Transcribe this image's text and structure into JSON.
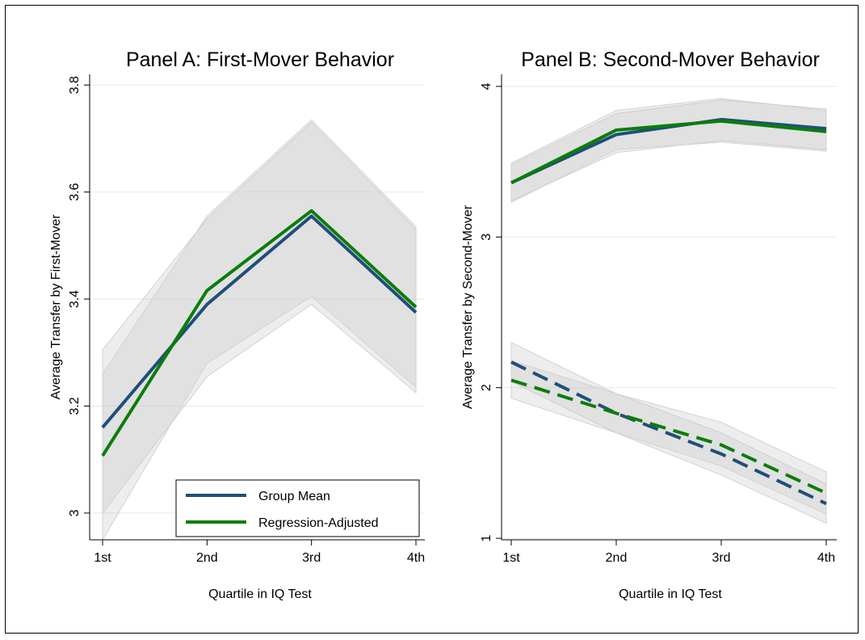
{
  "chart_data": [
    {
      "type": "line",
      "title": "Panel A: First-Mover Behavior",
      "xlabel": "Quartile in IQ Test",
      "ylabel": "Average Transfer by First-Mover",
      "categories": [
        "1st",
        "2nd",
        "3rd",
        "4th"
      ],
      "ylim": [
        2.95,
        3.82
      ],
      "yticks": [
        "3",
        "3.2",
        "3.4",
        "3.6",
        "3.8"
      ],
      "grid": true,
      "legend_position": "bottom-right",
      "series": [
        {
          "name": "Group Mean",
          "values": [
            3.16,
            3.39,
            3.555,
            3.375
          ],
          "color": "#1f4e79",
          "style": "solid",
          "ci_low": [
            3.0,
            3.255,
            3.39,
            3.225
          ],
          "ci_high": [
            3.305,
            3.55,
            3.73,
            3.53
          ]
        },
        {
          "name": "Regression-Adjusted",
          "values": [
            3.107,
            3.416,
            3.565,
            3.385
          ],
          "color": "#0a7d0a",
          "style": "solid",
          "ci_low": [
            2.95,
            3.28,
            3.405,
            3.235
          ],
          "ci_high": [
            3.26,
            3.555,
            3.735,
            3.535
          ]
        }
      ],
      "legend": [
        "Group Mean",
        "Regression-Adjusted"
      ]
    },
    {
      "type": "line",
      "title": "Panel B: Second-Mover Behavior",
      "xlabel": "Quartile in IQ Test",
      "ylabel": "Average Transfer by Second-Mover",
      "categories": [
        "1st",
        "2nd",
        "3rd",
        "4th"
      ],
      "ylim": [
        0.99,
        4.08
      ],
      "yticks": [
        "1",
        "2",
        "3",
        "4"
      ],
      "grid": true,
      "series": [
        {
          "values": [
            3.36,
            3.68,
            3.78,
            3.72
          ],
          "color": "#1f4e79",
          "style": "solid",
          "ci_low": [
            3.24,
            3.56,
            3.64,
            3.58
          ],
          "ci_high": [
            3.48,
            3.82,
            3.91,
            3.85
          ]
        },
        {
          "values": [
            3.36,
            3.71,
            3.77,
            3.7
          ],
          "color": "#0a7d0a",
          "style": "solid",
          "ci_low": [
            3.23,
            3.58,
            3.63,
            3.57
          ],
          "ci_high": [
            3.49,
            3.84,
            3.92,
            3.84
          ]
        },
        {
          "values": [
            2.17,
            1.83,
            1.56,
            1.23
          ],
          "color": "#1f4e79",
          "style": "dashed",
          "ci_low": [
            2.04,
            1.7,
            1.42,
            1.1
          ],
          "ci_high": [
            2.3,
            1.96,
            1.7,
            1.36
          ]
        },
        {
          "values": [
            2.05,
            1.83,
            1.62,
            1.3
          ],
          "color": "#0a7d0a",
          "style": "dashed",
          "ci_low": [
            1.93,
            1.7,
            1.48,
            1.16
          ],
          "ci_high": [
            2.18,
            1.96,
            1.77,
            1.44
          ]
        }
      ]
    }
  ]
}
